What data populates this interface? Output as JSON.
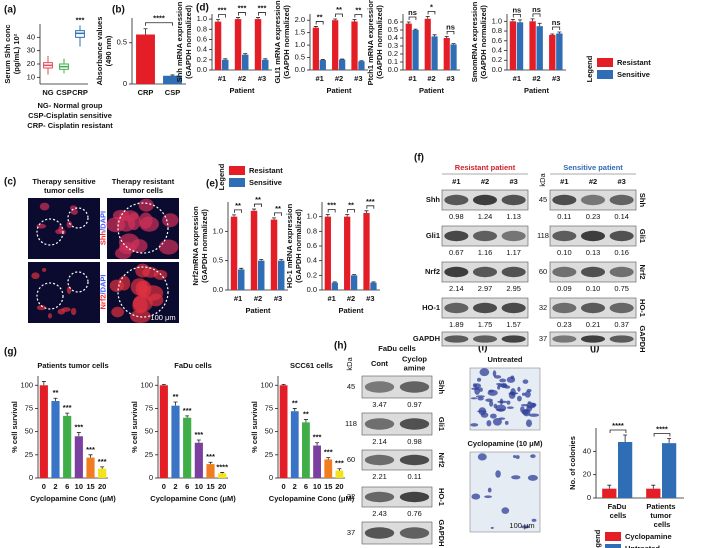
{
  "panel_labels": {
    "a": "(a)",
    "b": "(b)",
    "c": "(c)",
    "d": "(d)",
    "e": "(e)",
    "f": "(f)",
    "g": "(g)",
    "h": "(h)",
    "i": "(i)",
    "j": "(j)"
  },
  "chart_data": [
    {
      "type": "box",
      "ylabel": [
        "Serum Shh conc",
        "(pg/mL) 10²"
      ],
      "categories": [
        "NG",
        "CSP",
        "CRP"
      ],
      "low": [
        12,
        13,
        33
      ],
      "q1": [
        17,
        16,
        40
      ],
      "median": [
        19,
        18,
        43
      ],
      "q3": [
        21,
        20,
        45
      ],
      "high": [
        26,
        24,
        49
      ],
      "colors": [
        "#e5495a",
        "#3fae49",
        "#2f6db5"
      ],
      "annotations": [
        null,
        null,
        "***"
      ],
      "ylim": [
        5,
        50
      ],
      "yticks": [
        10,
        20,
        30,
        40
      ],
      "notes": [
        "NG- Normal group",
        "CSP-Cisplatin sensitive",
        "CRP- Cisplatin resistant"
      ]
    },
    {
      "type": "bar",
      "ylabel": [
        "Absorbance values",
        "(490 nm)"
      ],
      "categories": [
        "CRP",
        "CSP"
      ],
      "values": [
        0.6,
        0.1
      ],
      "errors": [
        0.07,
        0.01
      ],
      "colors": [
        "#e31e26",
        "#2f6db5"
      ],
      "comparison": "****",
      "ylim": [
        0,
        0.8
      ],
      "yticks": [
        0,
        0.5
      ]
    },
    {
      "type": "bar",
      "series": [
        {
          "name": "Resistant",
          "color": "#e31e26"
        },
        {
          "name": "Sensitive",
          "color": "#2f6db5"
        }
      ],
      "legend_title": "Legend",
      "categories": [
        "#1",
        "#2",
        "#3"
      ],
      "xlabel": "Patient",
      "panels": [
        {
          "ylabel": [
            "Shh mRNA expression",
            "(GAPDH normalized)"
          ],
          "ylim": [
            0,
            1.1
          ],
          "yticks": [
            {
              "value": 0,
              "label": "0.0"
            },
            0.2,
            0.4,
            0.6,
            0.8,
            {
              "value": 1,
              "label": "1.0"
            }
          ],
          "values": [
            [
              0.95,
              1.0,
              1.0
            ],
            [
              0.2,
              0.3,
              0.2
            ]
          ],
          "errors": [
            [
              0.04,
              0.03,
              0.03
            ],
            [
              0.02,
              0.02,
              0.02
            ]
          ],
          "annotations": [
            "***",
            "***",
            "***"
          ]
        },
        {
          "ylabel": [
            "GLI1 mRNA expression",
            "(GAPDH normalized)"
          ],
          "ylim": [
            0,
            2.25
          ],
          "yticks": [
            {
              "value": 0,
              "label": "0.0"
            },
            0.5,
            {
              "value": 1,
              "label": "1.0"
            },
            1.5,
            {
              "value": 2,
              "label": "2.0"
            }
          ],
          "values": [
            [
              1.7,
              2.0,
              1.95
            ],
            [
              0.4,
              0.42,
              0.35
            ]
          ],
          "errors": [
            [
              0.05,
              0.05,
              0.08
            ],
            [
              0.02,
              0.02,
              0.02
            ]
          ],
          "annotations": [
            "**",
            "**",
            "**"
          ]
        },
        {
          "ylabel": [
            "Ptch1 mRNA expression",
            "(GAPDH normalized)"
          ],
          "ylim": [
            0,
            0.7
          ],
          "yticks": [
            {
              "value": 0,
              "label": "0.0"
            },
            0.1,
            0.2,
            0.3,
            0.4,
            0.5,
            0.6
          ],
          "values": [
            [
              0.58,
              0.64,
              0.4
            ],
            [
              0.5,
              0.42,
              0.32
            ]
          ],
          "errors": [
            [
              0.02,
              0.03,
              0.02
            ],
            [
              0.01,
              0.02,
              0.01
            ]
          ],
          "annotations": [
            "ns",
            "*",
            "ns"
          ]
        },
        {
          "ylabel": [
            "SmomRNA expression",
            "(GAPDH normalized)"
          ],
          "ylim": [
            0,
            1.15
          ],
          "yticks": [
            {
              "value": 0,
              "label": "0.0"
            },
            0.2,
            0.4,
            0.6,
            0.8,
            {
              "value": 1,
              "label": "1.0"
            }
          ],
          "values": [
            [
              1.0,
              1.0,
              0.72
            ],
            [
              0.98,
              0.9,
              0.75
            ]
          ],
          "errors": [
            [
              0.04,
              0.05,
              0.02
            ],
            [
              0.05,
              0.06,
              0.03
            ]
          ],
          "annotations": [
            "ns",
            "ns",
            "ns"
          ]
        }
      ]
    },
    {
      "type": "bar",
      "series": [
        {
          "name": "Resistant",
          "color": "#e31e26"
        },
        {
          "name": "Sensitive",
          "color": "#2f6db5"
        }
      ],
      "legend_title": "Legend",
      "categories": [
        "#1",
        "#2",
        "#3"
      ],
      "xlabel": "Patient",
      "panels": [
        {
          "ylabel": [
            "Nrf2mRNA expression",
            "(GAPDH normalized)"
          ],
          "ylim": [
            0,
            1.5
          ],
          "yticks": [
            {
              "value": 0,
              "label": "0.0"
            },
            0.5,
            {
              "value": 1,
              "label": "1.0"
            }
          ],
          "values": [
            [
              1.25,
              1.35,
              1.2
            ],
            [
              0.35,
              0.5,
              0.5
            ]
          ],
          "errors": [
            [
              0.03,
              0.03,
              0.03
            ],
            [
              0.02,
              0.02,
              0.02
            ]
          ],
          "annotations": [
            "**",
            "**",
            "**"
          ]
        },
        {
          "ylabel": [
            "HO-1 mRNA expression",
            "(GAPDH normalized)"
          ],
          "ylim": [
            0,
            1.2
          ],
          "yticks": [
            {
              "value": 0,
              "label": "0.0"
            },
            0.2,
            0.4,
            0.6,
            0.8,
            {
              "value": 1,
              "label": "1.0"
            }
          ],
          "values": [
            [
              1.0,
              1.0,
              1.05
            ],
            [
              0.1,
              0.2,
              0.1
            ]
          ],
          "errors": [
            [
              0.03,
              0.03,
              0.03
            ],
            [
              0.01,
              0.01,
              0.01
            ]
          ],
          "annotations": [
            "***",
            "**",
            "***"
          ]
        }
      ]
    },
    {
      "type": "bar",
      "ylabel": [
        "% cell survival"
      ],
      "xlabel": "Cyclopamine Conc (μM)",
      "categories": [
        "0",
        "2",
        "6",
        "10",
        "15",
        "20"
      ],
      "colors": [
        "#e31e26",
        "#3a74c6",
        "#3fae49",
        "#7b3fa0",
        "#f07d1f",
        "#f5e31a"
      ],
      "ylim": [
        0,
        110
      ],
      "yticks": [
        0,
        25,
        50,
        75,
        100
      ],
      "panels": [
        {
          "title": "Patients tumor cells",
          "values": [
            100,
            83,
            67,
            45,
            22,
            10
          ],
          "errors": [
            4,
            3,
            3,
            4,
            3,
            2
          ],
          "annotations": [
            null,
            "**",
            "***",
            "***",
            "***",
            "***"
          ]
        },
        {
          "title": "FaDu cells",
          "values": [
            100,
            78,
            65,
            38,
            15,
            5
          ],
          "errors": [
            1,
            4,
            2,
            3,
            2,
            1
          ],
          "annotations": [
            null,
            "**",
            "***",
            "***",
            "***",
            "****"
          ]
        },
        {
          "title": "SCC61 cells",
          "values": [
            100,
            72,
            60,
            35,
            20,
            8
          ],
          "errors": [
            1,
            3,
            3,
            3,
            2,
            2
          ],
          "annotations": [
            null,
            "**",
            "**",
            "***",
            "***",
            "***"
          ]
        }
      ]
    },
    {
      "type": "bar",
      "ylabel": [
        "No. of colonies"
      ],
      "categories": [
        "FaDu cells",
        "Patients tumor cells"
      ],
      "series": [
        {
          "name": "Cyclopamine",
          "color": "#e31e26"
        },
        {
          "name": "Untreated",
          "color": "#2f6db5"
        }
      ],
      "legend_title": "Legend",
      "values": [
        [
          8,
          8
        ],
        [
          48,
          47
        ]
      ],
      "errors": [
        [
          3,
          3
        ],
        [
          6,
          4
        ]
      ],
      "annotations": [
        "****",
        "****"
      ],
      "ylim": [
        0,
        60
      ],
      "yticks": [
        0,
        20,
        40
      ]
    }
  ],
  "microscopy": {
    "headers": [
      [
        "Therapy sensitive",
        "tumor cells"
      ],
      [
        "Therapy resistant",
        "tumor cells"
      ]
    ],
    "stains": [
      [
        "Shh",
        "/DAPI"
      ],
      [
        "Nrf2",
        "/DAPI"
      ]
    ],
    "scale": "100 μm"
  },
  "blots_f": {
    "groups": [
      {
        "title": "Resistant patient",
        "lanes": [
          "#1",
          "#2",
          "#3"
        ],
        "quant": [
          [
            "0.98",
            "1.24",
            "1.13"
          ],
          [
            "0.67",
            "1.16",
            "1.17"
          ],
          [
            "2.14",
            "2.97",
            "2.95"
          ],
          [
            "1.89",
            "1.75",
            "1.57"
          ]
        ]
      },
      {
        "title": "Sensitive patient",
        "lanes": [
          "#1",
          "#2",
          "#3"
        ],
        "quant": [
          [
            "0.11",
            "0.23",
            "0.14"
          ],
          [
            "0.10",
            "0.13",
            "0.16"
          ],
          [
            "0.09",
            "0.10",
            "0.75"
          ],
          [
            "0.23",
            "0.21",
            "0.37"
          ]
        ]
      }
    ],
    "proteins": [
      "Shh",
      "Gli1",
      "Nrf2",
      "HO-1",
      "GAPDH"
    ],
    "kda_title": "kDa",
    "kda": [
      "45",
      "118",
      "60",
      "32",
      "37"
    ]
  },
  "blots_h": {
    "title": "FaDu cells",
    "lanes": [
      [
        "Cont"
      ],
      [
        "Cyclop",
        "amine"
      ]
    ],
    "kda_title": "kDa",
    "kda": [
      "45",
      "118",
      "60",
      "32",
      "37"
    ],
    "proteins": [
      "Shh",
      "Gli1",
      "Nrf2",
      "HO-1",
      "GAPDH"
    ],
    "quant": [
      [
        "3.47",
        "0.97"
      ],
      [
        "2.14",
        "0.98"
      ],
      [
        "2.21",
        "0.11"
      ],
      [
        "2.43",
        "0.76"
      ]
    ]
  },
  "images_i": {
    "labels": [
      "Untreated",
      "Cyclopamine (10 μM)"
    ],
    "scale": "100 μm"
  }
}
